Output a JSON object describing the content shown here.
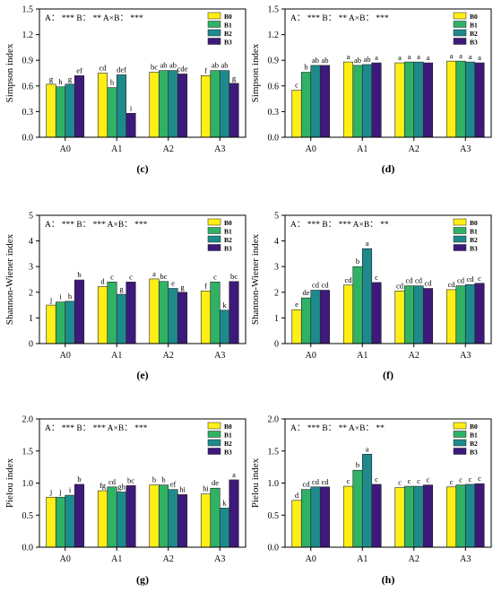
{
  "chart_data": [
    {
      "id": "c",
      "type": "bar",
      "panel_label": "(c)",
      "ylabel": "Simpson index",
      "ylim": [
        0,
        1.5
      ],
      "yticks": [
        "0.0",
        "0.3",
        "0.6",
        "0.9",
        "1.2",
        "1.5"
      ],
      "categories": [
        "A0",
        "A1",
        "A2",
        "A3"
      ],
      "significance": "A： *** B： ** A×B： ***",
      "legend": "top-right",
      "series": [
        {
          "name": "B0",
          "values": [
            0.62,
            0.75,
            0.76,
            0.72
          ],
          "labels": [
            "g",
            "cd",
            "bc",
            "f"
          ]
        },
        {
          "name": "B1",
          "values": [
            0.59,
            0.58,
            0.78,
            0.78
          ],
          "labels": [
            "h",
            "h",
            "ab",
            "ab"
          ]
        },
        {
          "name": "B2",
          "values": [
            0.62,
            0.73,
            0.78,
            0.78
          ],
          "labels": [
            "g",
            "def",
            "ab",
            "ab"
          ]
        },
        {
          "name": "B3",
          "values": [
            0.72,
            0.28,
            0.74,
            0.63
          ],
          "labels": [
            "ef",
            "i",
            "cde",
            "g"
          ]
        }
      ]
    },
    {
      "id": "d",
      "type": "bar",
      "panel_label": "(d)",
      "ylabel": "Simpson index",
      "ylim": [
        0,
        1.5
      ],
      "yticks": [
        "0.0",
        "0.3",
        "0.6",
        "0.9",
        "1.2",
        "1.5"
      ],
      "categories": [
        "A0",
        "A1",
        "A2",
        "A3"
      ],
      "significance": "A： *** B： ** A×B： ***",
      "legend": "top-right",
      "series": [
        {
          "name": "B0",
          "values": [
            0.55,
            0.88,
            0.87,
            0.89
          ],
          "labels": [
            "c",
            "a",
            "a",
            "a"
          ]
        },
        {
          "name": "B1",
          "values": [
            0.76,
            0.84,
            0.88,
            0.89
          ],
          "labels": [
            "b",
            "ab",
            "a",
            "a"
          ]
        },
        {
          "name": "B2",
          "values": [
            0.84,
            0.85,
            0.88,
            0.88
          ],
          "labels": [
            "ab",
            "ab",
            "a",
            "a"
          ]
        },
        {
          "name": "B3",
          "values": [
            0.84,
            0.87,
            0.87,
            0.87
          ],
          "labels": [
            "ab",
            "a",
            "a",
            "a"
          ]
        }
      ]
    },
    {
      "id": "e",
      "type": "bar",
      "panel_label": "(e)",
      "ylabel": "Shannon-Wiener index",
      "ylim": [
        0,
        5
      ],
      "yticks": [
        "0",
        "1",
        "2",
        "3",
        "4",
        "5"
      ],
      "categories": [
        "A0",
        "A1",
        "A2",
        "A3"
      ],
      "significance": "A： *** B： *** A×B： ***",
      "legend": "top-right",
      "series": [
        {
          "name": "B0",
          "values": [
            1.5,
            2.22,
            2.52,
            2.05
          ],
          "labels": [
            "j",
            "d",
            "a",
            "f"
          ]
        },
        {
          "name": "B1",
          "values": [
            1.62,
            2.4,
            2.42,
            2.4
          ],
          "labels": [
            "i",
            "c",
            "bc",
            "c"
          ]
        },
        {
          "name": "B2",
          "values": [
            1.65,
            1.92,
            2.15,
            1.3
          ],
          "labels": [
            "h",
            "g",
            "e",
            "k"
          ]
        },
        {
          "name": "B3",
          "values": [
            2.48,
            2.4,
            2.0,
            2.42
          ],
          "labels": [
            "b",
            "c",
            "g",
            "bc"
          ]
        }
      ]
    },
    {
      "id": "f",
      "type": "bar",
      "panel_label": "(f)",
      "ylabel": "Shannon-Wiener index",
      "ylim": [
        0,
        5
      ],
      "yticks": [
        "0",
        "1",
        "2",
        "3",
        "4",
        "5"
      ],
      "categories": [
        "A0",
        "A1",
        "A2",
        "A3"
      ],
      "significance": "A： *** B： *** A×B： **",
      "legend": "top-right",
      "series": [
        {
          "name": "B0",
          "values": [
            1.32,
            2.28,
            2.05,
            2.1
          ],
          "labels": [
            "e",
            "cd",
            "cd",
            "cd"
          ]
        },
        {
          "name": "B1",
          "values": [
            1.78,
            3.0,
            2.25,
            2.25
          ],
          "labels": [
            "de",
            "b",
            "cd",
            "cd"
          ]
        },
        {
          "name": "B2",
          "values": [
            2.08,
            3.7,
            2.25,
            2.3
          ],
          "labels": [
            "cd",
            "a",
            "cd",
            "cd"
          ]
        },
        {
          "name": "B3",
          "values": [
            2.08,
            2.38,
            2.15,
            2.35
          ],
          "labels": [
            "cd",
            "c",
            "cd",
            "c"
          ]
        }
      ]
    },
    {
      "id": "g",
      "type": "bar",
      "panel_label": "(g)",
      "ylabel": "Pielou index",
      "ylim": [
        0,
        2.0
      ],
      "yticks": [
        "0.0",
        "0.5",
        "1.0",
        "1.5",
        "2.0"
      ],
      "categories": [
        "A0",
        "A1",
        "A2",
        "A3"
      ],
      "significance": "A： *** B： *** A×B： ***",
      "legend": "top-right",
      "series": [
        {
          "name": "B0",
          "values": [
            0.78,
            0.88,
            0.97,
            0.83
          ],
          "labels": [
            "j",
            "fg",
            "b",
            "hi"
          ]
        },
        {
          "name": "B1",
          "values": [
            0.78,
            0.94,
            0.97,
            0.92
          ],
          "labels": [
            "j",
            "cd",
            "b",
            "de"
          ]
        },
        {
          "name": "B2",
          "values": [
            0.81,
            0.86,
            0.9,
            0.61
          ],
          "labels": [
            "i",
            "gh",
            "ef",
            "k"
          ]
        },
        {
          "name": "B3",
          "values": [
            0.98,
            0.96,
            0.82,
            1.05
          ],
          "labels": [
            "b",
            "bc",
            "hi",
            "a"
          ]
        }
      ]
    },
    {
      "id": "h",
      "type": "bar",
      "panel_label": "(h)",
      "ylabel": "Pielou index",
      "ylim": [
        0,
        2.0
      ],
      "yticks": [
        "0.0",
        "0.5",
        "1.0",
        "1.5",
        "2.0"
      ],
      "categories": [
        "A0",
        "A1",
        "A2",
        "A3"
      ],
      "significance": "A： *** B： ** A×B： **",
      "legend": "top-right",
      "series": [
        {
          "name": "B0",
          "values": [
            0.73,
            0.95,
            0.93,
            0.94
          ],
          "labels": [
            "d",
            "c",
            "c",
            "c"
          ]
        },
        {
          "name": "B1",
          "values": [
            0.9,
            1.2,
            0.95,
            0.97
          ],
          "labels": [
            "cd",
            "b",
            "c",
            "c"
          ]
        },
        {
          "name": "B2",
          "values": [
            0.94,
            1.45,
            0.95,
            0.98
          ],
          "labels": [
            "cd",
            "a",
            "c",
            "c"
          ]
        },
        {
          "name": "B3",
          "values": [
            0.94,
            0.98,
            0.97,
            0.99
          ],
          "labels": [
            "cd",
            "c",
            "c",
            "c"
          ]
        }
      ]
    }
  ],
  "colors": {
    "B0": "#ffef17",
    "B1": "#2fb266",
    "B2": "#1e8a8c",
    "B3": "#3d1a7a"
  }
}
